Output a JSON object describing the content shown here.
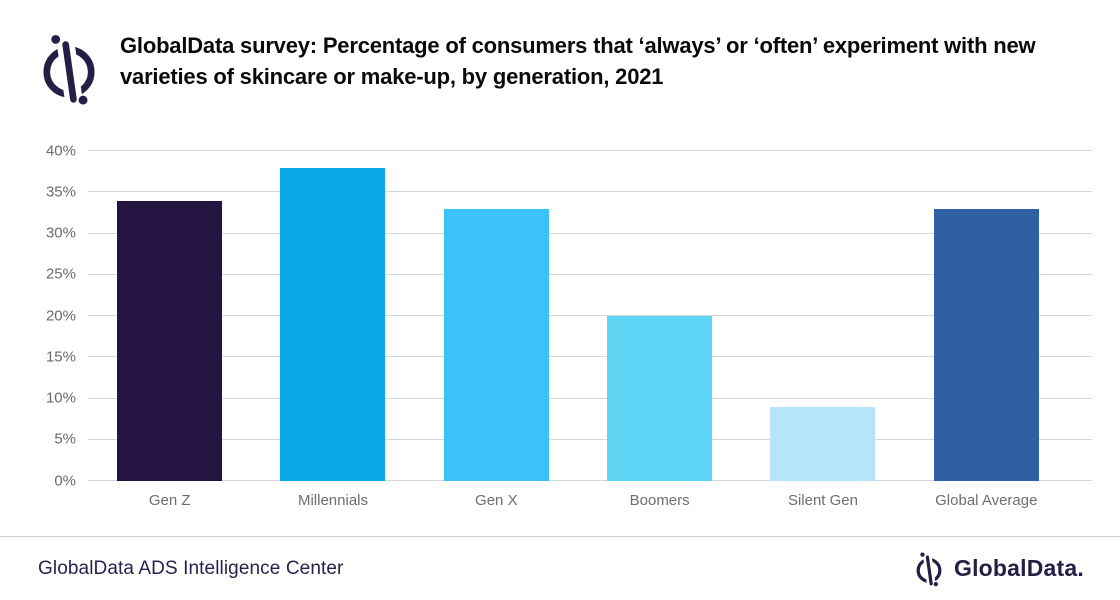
{
  "header": {
    "title": "GlobalData survey: Percentage of consumers that ‘always’ or ‘often’ experiment with new varieties of skincare or make-up, by generation, 2021"
  },
  "chart_data": {
    "type": "bar",
    "title": "GlobalData survey: Percentage of consumers that ‘always’ or ‘often’ experiment with new varieties of skincare or make-up, by generation, 2021",
    "categories": [
      "Gen Z",
      "Millennials",
      "Gen X",
      "Boomers",
      "Silent Gen",
      "Global Average"
    ],
    "values": [
      34,
      38,
      33,
      20,
      9,
      33
    ],
    "bar_colors": [
      "#241442",
      "#09a6e8",
      "#3ac2f9",
      "#5fd5f6",
      "#b5e4fb",
      "#2f60a4"
    ],
    "xlabel": "",
    "ylabel": "",
    "ylim": [
      0,
      40
    ],
    "yticks": [
      0,
      5,
      10,
      15,
      20,
      25,
      30,
      35,
      40
    ],
    "ytick_suffix": "%",
    "grid": true,
    "legend": false
  },
  "footer": {
    "source": "GlobalData ADS Intelligence Center",
    "brand": "GlobalData."
  },
  "icons": {
    "brand_logo": "globaldata-slashed-circle-logo"
  },
  "colors": {
    "brand_navy": "#232046",
    "gridline": "#d8d8d8",
    "axis_text": "#6b6b6b",
    "category_text": "#6e6e6e",
    "title_text": "#0a0a0a",
    "background": "#ffffff"
  }
}
